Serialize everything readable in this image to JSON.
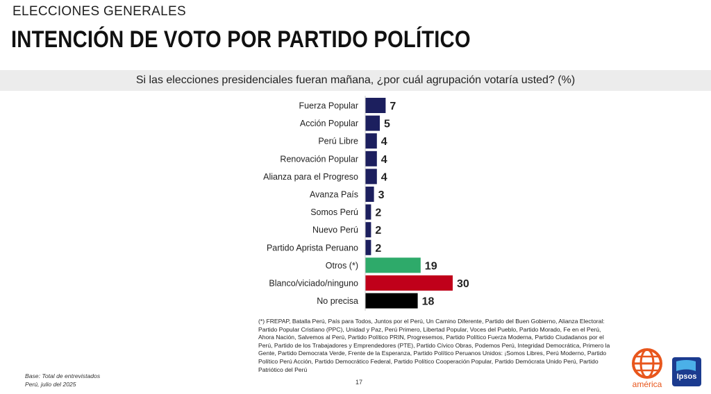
{
  "header": {
    "kicker": "ELECCIONES GENERALES",
    "title": "INTENCIÓN DE VOTO POR PARTIDO POLÍTICO",
    "question": "Si las elecciones presidenciales fueran mañana, ¿por cuál agrupación votaría usted? (%)"
  },
  "chart_data": {
    "type": "bar",
    "orientation": "horizontal",
    "categories": [
      "Fuerza Popular",
      "Acción Popular",
      "Perú Libre",
      "Renovación Popular",
      "Alianza para el Progreso",
      "Avanza País",
      "Somos Perú",
      "Nuevo Perú",
      "Partido Aprista Peruano",
      "Otros (*)",
      "Blanco/viciado/ninguno",
      "No precisa"
    ],
    "values": [
      7,
      5,
      4,
      4,
      4,
      3,
      2,
      2,
      2,
      19,
      30,
      18
    ],
    "colors": [
      "#1c1f5e",
      "#1c1f5e",
      "#1c1f5e",
      "#1c1f5e",
      "#1c1f5e",
      "#1c1f5e",
      "#1c1f5e",
      "#1c1f5e",
      "#1c1f5e",
      "#2eaa6a",
      "#c0001a",
      "#000000"
    ],
    "unit": "%",
    "xlim": [
      0,
      30
    ],
    "grid": false,
    "data_labels": true
  },
  "footnote": "(*) FREPAP, Batalla Perú, País para Todos, Juntos por el Perú, Un Camino Diferente, Partido del Buen Gobierno, Alianza Electoral: Partido Popular Cristiano (PPC), Unidad y Paz, Perú Primero, Libertad Popular, Voces del Pueblo, Partido Morado, Fe en el Perú, Ahora Nación, Salvemos al Perú, Partido Político PRIN, Progresemos, Partido Político Fuerza Moderna, Partido Ciudadanos por el Perú, Partido de los Trabajadores y Emprendedores (PTE), Partido Cívico Obras, Podemos Perú, Integridad Democrática, Primero la Gente, Partido Democrata Verde, Frente de la Esperanza, Partido Político Peruanos Unidos: ¡Somos Libres, Perú Moderno, Partido Político Perú Acción, Partido Democrático Federal, Partido Político Cooperación Popular, Partido Demócrata Unido Perú, Partido Patriótico del Perú",
  "base": {
    "line1": "Base: Total de entrevistados",
    "line2": "Perú, julio del 2025"
  },
  "page_number": "17",
  "logos": {
    "america": "américa",
    "ipsos": "Ipsos"
  }
}
